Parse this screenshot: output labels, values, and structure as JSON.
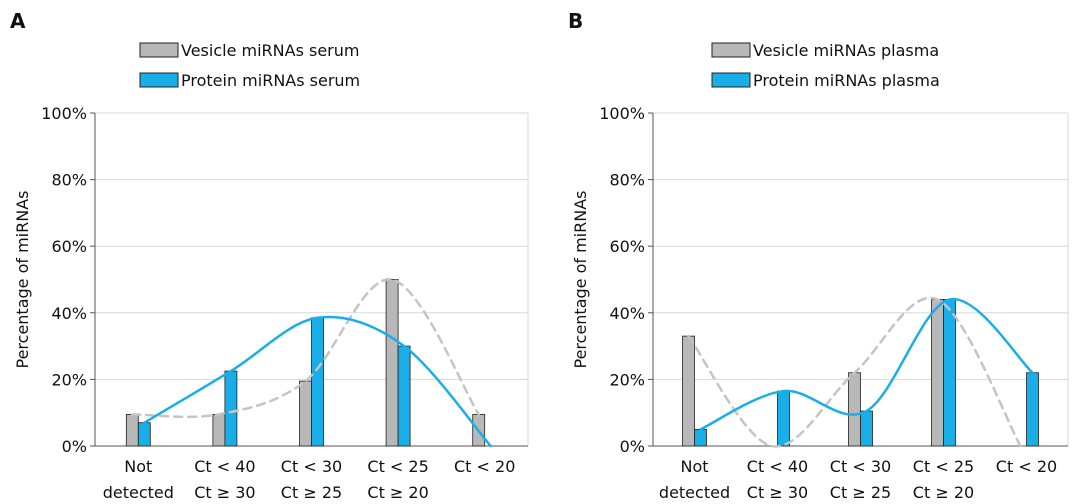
{
  "chart_data": [
    {
      "type": "bar",
      "panel_label": "A",
      "title": "",
      "xlabel": "",
      "ylabel": "Percentage of miRNAs",
      "ylim": [
        0,
        100
      ],
      "ytick_labels": [
        "0%",
        "20%",
        "40%",
        "60%",
        "80%",
        "100%"
      ],
      "yticks": [
        0,
        20,
        40,
        60,
        80,
        100
      ],
      "categories": [
        [
          "Not",
          "detected"
        ],
        [
          "Ct < 40",
          "Ct ≥ 30"
        ],
        [
          "Ct < 30",
          "Ct ≥ 25"
        ],
        [
          "Ct < 25",
          "Ct ≥ 20"
        ],
        [
          "Ct < 20",
          ""
        ]
      ],
      "grid": "horizontal",
      "legend_position": "top",
      "series": [
        {
          "name": "Vesicle miRNAs serum",
          "values": [
            9.5,
            9.5,
            19.5,
            50,
            9.5
          ],
          "color": "#b8b8b8",
          "line_color": "#c4c4c4",
          "line_style": "dashed"
        },
        {
          "name": "Protein miRNAs serum",
          "values": [
            7,
            22.5,
            38.5,
            30,
            0
          ],
          "color": "#1aaee8",
          "line_color": "#1aaee8",
          "line_style": "solid"
        }
      ]
    },
    {
      "type": "bar",
      "panel_label": "B",
      "title": "",
      "xlabel": "",
      "ylabel": "Percentage of miRNAs",
      "ylim": [
        0,
        100
      ],
      "ytick_labels": [
        "0%",
        "20%",
        "40%",
        "60%",
        "80%",
        "100%"
      ],
      "yticks": [
        0,
        20,
        40,
        60,
        80,
        100
      ],
      "categories": [
        [
          "Not",
          "detected"
        ],
        [
          "Ct < 40",
          "Ct ≥ 30"
        ],
        [
          "Ct < 30",
          "Ct ≥ 25"
        ],
        [
          "Ct < 25",
          "Ct ≥ 20"
        ],
        [
          "Ct < 20",
          ""
        ]
      ],
      "grid": "horizontal",
      "legend_position": "top",
      "series": [
        {
          "name": "Vesicle miRNAs plasma",
          "values": [
            33,
            0,
            22,
            44,
            0
          ],
          "color": "#b8b8b8",
          "line_color": "#c4c4c4",
          "line_style": "dashed"
        },
        {
          "name": "Protein miRNAs plasma",
          "values": [
            5,
            16.5,
            10.5,
            44,
            22
          ],
          "color": "#1aaee8",
          "line_color": "#1aaee8",
          "line_style": "solid"
        }
      ]
    }
  ]
}
